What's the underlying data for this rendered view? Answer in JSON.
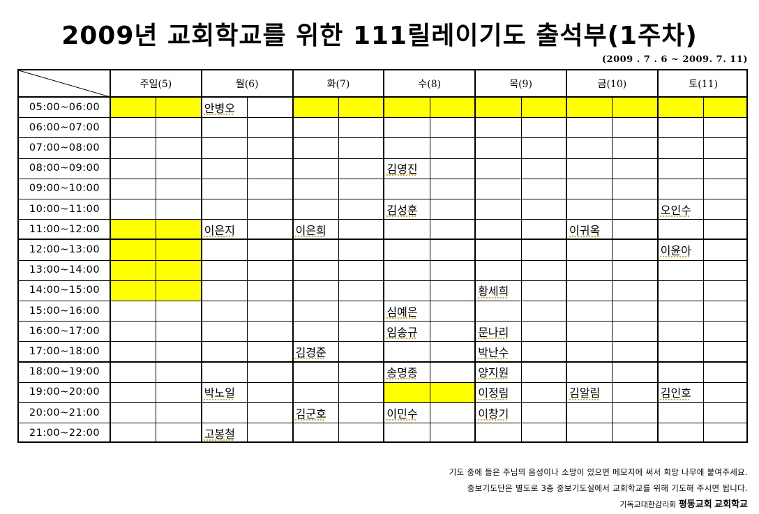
{
  "title": "2009년 교회학교를 위한 111릴레이기도 출석부(1주차)",
  "period": "(2009 . 7 . 6 ~ 2009. 7. 11)",
  "highlight_color": "#ffff00",
  "days": [
    "주일(5)",
    "월(6)",
    "화(7)",
    "수(8)",
    "목(9)",
    "금(10)",
    "토(11)"
  ],
  "times": [
    "05:00~06:00",
    "06:00~07:00",
    "07:00~08:00",
    "08:00~09:00",
    "09:00~10:00",
    "10:00~11:00",
    "11:00~12:00",
    "12:00~13:00",
    "13:00~14:00",
    "14:00~15:00",
    "15:00~16:00",
    "16:00~17:00",
    "17:00~18:00",
    "18:00~19:00",
    "19:00~20:00",
    "20:00~21:00",
    "21:00~22:00"
  ],
  "highlights": [
    {
      "row": 0,
      "cols": [
        0,
        1,
        4,
        5,
        6,
        7,
        8,
        9,
        10,
        11,
        12,
        13
      ]
    },
    {
      "row": 6,
      "cols": [
        0,
        1
      ]
    },
    {
      "row": 7,
      "cols": [
        0,
        1
      ]
    },
    {
      "row": 8,
      "cols": [
        0,
        1
      ]
    },
    {
      "row": 9,
      "cols": [
        0,
        1
      ]
    },
    {
      "row": 14,
      "cols": [
        6,
        7
      ]
    }
  ],
  "entries": [
    {
      "row": 0,
      "col": 2,
      "name": "안병오"
    },
    {
      "row": 3,
      "col": 6,
      "name": "김영진"
    },
    {
      "row": 5,
      "col": 6,
      "name": "김성훈"
    },
    {
      "row": 5,
      "col": 12,
      "name": "오인수"
    },
    {
      "row": 6,
      "col": 2,
      "name": "이은지"
    },
    {
      "row": 6,
      "col": 4,
      "name": "이은희"
    },
    {
      "row": 6,
      "col": 10,
      "name": "이귀옥"
    },
    {
      "row": 7,
      "col": 12,
      "name": "이윤아"
    },
    {
      "row": 9,
      "col": 8,
      "name": "황세희"
    },
    {
      "row": 10,
      "col": 6,
      "name": "심예은"
    },
    {
      "row": 11,
      "col": 6,
      "name": "임송규"
    },
    {
      "row": 11,
      "col": 8,
      "name": "문나리"
    },
    {
      "row": 12,
      "col": 4,
      "name": "김경준"
    },
    {
      "row": 12,
      "col": 8,
      "name": "박난수"
    },
    {
      "row": 13,
      "col": 6,
      "name": "송명종"
    },
    {
      "row": 13,
      "col": 8,
      "name": "양지원"
    },
    {
      "row": 14,
      "col": 2,
      "name": "박노일"
    },
    {
      "row": 14,
      "col": 8,
      "name": "이정림"
    },
    {
      "row": 14,
      "col": 10,
      "name": "김알림"
    },
    {
      "row": 14,
      "col": 12,
      "name": "김인호"
    },
    {
      "row": 15,
      "col": 4,
      "name": "김군호"
    },
    {
      "row": 15,
      "col": 6,
      "name": "이민수"
    },
    {
      "row": 15,
      "col": 8,
      "name": "이창기"
    },
    {
      "row": 16,
      "col": 2,
      "name": "고봉철"
    }
  ],
  "notes": {
    "line1": "기도 중에 들은 주님의 음성이나 소망이 있으면 메모지에 써서 희망 나무에 붙여주세요.",
    "line2": "중보기도단은 별도로 3층 중보기도실에서 교회학교를 위해 기도해 주시면 됩니다."
  },
  "signature": {
    "org": "기독교대한감리회",
    "church": "평동교회",
    "school": "교회학교"
  }
}
